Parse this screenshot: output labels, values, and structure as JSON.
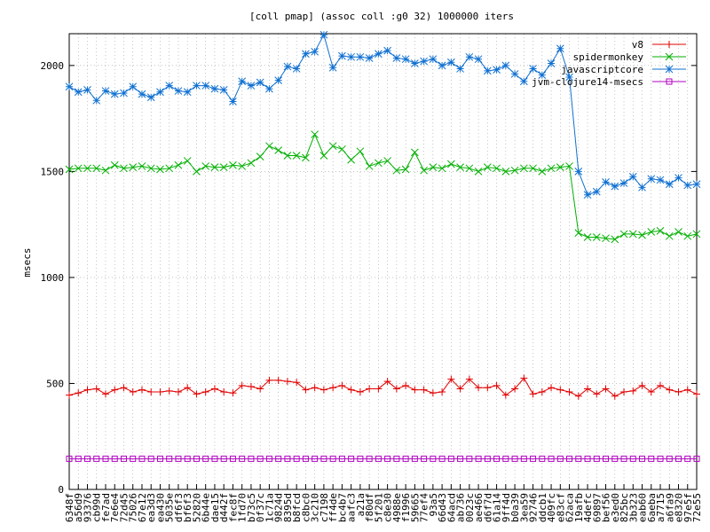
{
  "chart_data": {
    "type": "line",
    "title": "[coll pmap] (assoc coll :g0 32) 1000000 iters",
    "y_label": "msecs",
    "categories": [
      "6348f",
      "a56d9",
      "93376",
      "cb99d",
      "fe7ad",
      "7e6e4",
      "72d45",
      "75026",
      "67e12",
      "ea3d3",
      "ea430",
      "5035e",
      "df6f3",
      "bf6f3",
      "52820",
      "6b44e",
      "dae15",
      "d442f",
      "fec8f",
      "1fd70",
      "b73c5",
      "0f37c",
      "1c71a",
      "9824d",
      "8395d",
      "b8fcd",
      "c8bc0",
      "3c210",
      "c7198",
      "ff4de",
      "bc4b7",
      "aafc3",
      "a21a",
      "f80df",
      "5f201",
      "c8e30",
      "4988e",
      "f1996",
      "59665",
      "77ef4",
      "93a5",
      "66d43",
      "64acd",
      "ab736",
      "0023c",
      "ae466",
      "d6f7d",
      "61a14",
      "9ff4d",
      "b0a39",
      "3ea59",
      "92746",
      "ddcb1",
      "409fc",
      "e83cf",
      "62aca",
      "19afb",
      "4defc",
      "69897",
      "bef56",
      "e3ed0",
      "825bc",
      "3b323",
      "eab60",
      "6aeba",
      "a7715",
      "a6fa9",
      "e8320",
      "97e5f",
      "72e55"
    ],
    "series": [
      {
        "name": "v8",
        "color": "#e00000",
        "marker": "plus",
        "values": [
          445,
          455,
          470,
          475,
          450,
          470,
          480,
          460,
          470,
          460,
          460,
          465,
          460,
          480,
          450,
          460,
          475,
          460,
          455,
          490,
          485,
          475,
          515,
          515,
          510,
          505,
          470,
          480,
          470,
          480,
          490,
          470,
          460,
          475,
          475,
          510,
          475,
          490,
          470,
          470,
          455,
          460,
          520,
          475,
          520,
          480,
          480,
          490,
          445,
          475,
          525,
          450,
          460,
          480,
          470,
          460,
          440,
          475,
          450,
          475,
          440,
          460,
          465,
          490,
          460,
          490,
          470,
          460,
          470,
          450
        ]
      },
      {
        "name": "spidermonkey",
        "color": "#00b000",
        "marker": "cross",
        "values": [
          1510,
          1515,
          1515,
          1515,
          1505,
          1530,
          1515,
          1520,
          1525,
          1515,
          1510,
          1515,
          1530,
          1550,
          1500,
          1525,
          1520,
          1520,
          1530,
          1525,
          1540,
          1570,
          1620,
          1600,
          1575,
          1575,
          1565,
          1675,
          1575,
          1620,
          1605,
          1555,
          1595,
          1525,
          1540,
          1550,
          1505,
          1510,
          1590,
          1505,
          1520,
          1515,
          1535,
          1520,
          1515,
          1500,
          1520,
          1515,
          1500,
          1505,
          1515,
          1515,
          1500,
          1515,
          1520,
          1525,
          1210,
          1190,
          1190,
          1185,
          1180,
          1205,
          1205,
          1200,
          1215,
          1220,
          1195,
          1215,
          1195,
          1205
        ]
      },
      {
        "name": "javascriptcore",
        "color": "#1070d0",
        "marker": "star",
        "values": [
          1900,
          1875,
          1885,
          1835,
          1880,
          1865,
          1870,
          1900,
          1865,
          1850,
          1875,
          1905,
          1880,
          1875,
          1905,
          1905,
          1890,
          1885,
          1830,
          1925,
          1905,
          1920,
          1890,
          1930,
          1995,
          1985,
          2055,
          2065,
          2145,
          1990,
          2045,
          2040,
          2040,
          2035,
          2055,
          2070,
          2035,
          2030,
          2010,
          2020,
          2030,
          2000,
          2015,
          1985,
          2040,
          2030,
          1975,
          1980,
          2000,
          1960,
          1925,
          1985,
          1955,
          2010,
          2080,
          1945,
          1500,
          1390,
          1405,
          1450,
          1430,
          1445,
          1475,
          1425,
          1465,
          1460,
          1440,
          1470,
          1435,
          1440
        ]
      },
      {
        "name": "jvm-clojure14-msecs",
        "color": "#b000c0",
        "marker": "square",
        "values": [
          145,
          145,
          145,
          145,
          145,
          145,
          145,
          145,
          145,
          145,
          145,
          145,
          145,
          145,
          145,
          145,
          145,
          145,
          145,
          145,
          145,
          145,
          145,
          145,
          145,
          145,
          145,
          145,
          145,
          145,
          145,
          145,
          145,
          145,
          145,
          145,
          145,
          145,
          145,
          145,
          145,
          145,
          145,
          145,
          145,
          145,
          145,
          145,
          145,
          145,
          145,
          145,
          145,
          145,
          145,
          145,
          145,
          145,
          145,
          145,
          145,
          145,
          145,
          145,
          145,
          145,
          145,
          145,
          145,
          145
        ]
      }
    ],
    "ylim": [
      0,
      2150
    ],
    "yticks": [
      0,
      500,
      1000,
      1500,
      2000
    ],
    "grid": true,
    "legend": "top-right"
  }
}
